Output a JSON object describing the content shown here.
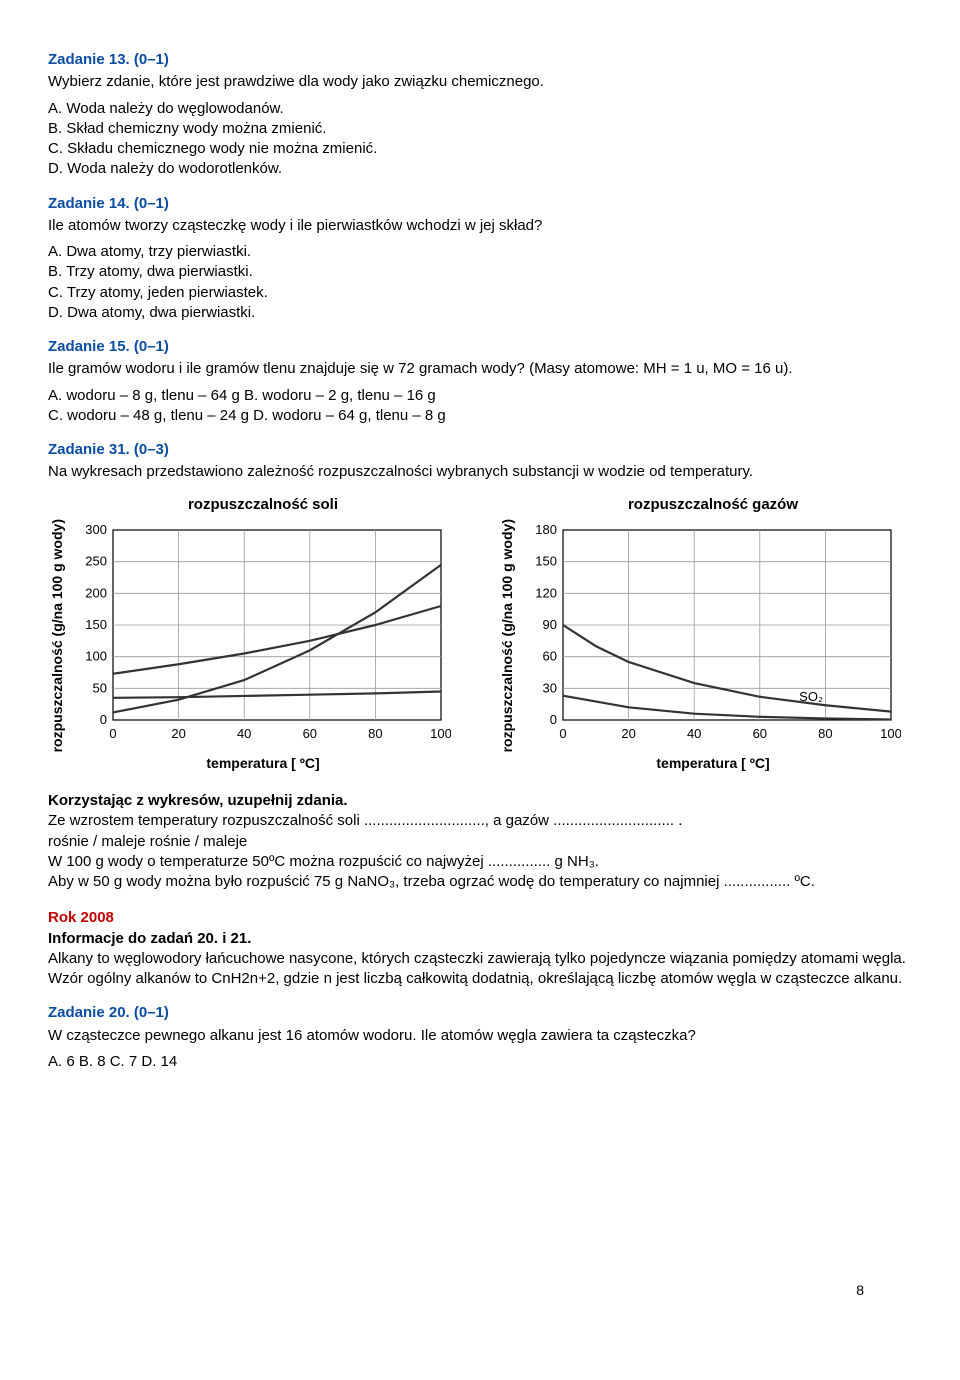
{
  "z13": {
    "title": "Zadanie 13. (0–1)",
    "q": "Wybierz zdanie, które jest prawdziwe dla wody jako związku chemicznego.",
    "a": "A. Woda należy do węglowodanów.",
    "b": "B. Skład chemiczny wody można zmienić.",
    "c": "C. Składu chemicznego wody nie można zmienić.",
    "d": "D. Woda należy do wodorotlenków."
  },
  "z14": {
    "title": "Zadanie 14. (0–1)",
    "q": "Ile atomów tworzy cząsteczkę wody i ile pierwiastków wchodzi w jej skład?",
    "a": "A. Dwa atomy, trzy pierwiastki.",
    "b": "B. Trzy atomy, dwa pierwiastki.",
    "c": "C. Trzy atomy, jeden pierwiastek.",
    "d": "D. Dwa atomy, dwa pierwiastki."
  },
  "z15": {
    "title": "Zadanie 15. (0–1)",
    "q": "Ile gramów wodoru i ile gramów tlenu znajduje się w 72 gramach wody? (Masy atomowe: MH = 1 u, MO = 16 u).",
    "ab": "A. wodoru – 8 g, tlenu – 64 g B. wodoru – 2 g, tlenu – 16 g",
    "cd": "C. wodoru – 48 g, tlenu – 24 g D. wodoru – 64 g, tlenu – 8 g"
  },
  "z31": {
    "title": "Zadanie 31. (0–3)",
    "q": "Na wykresach przedstawiono zależność rozpuszczalności wybranych substancji w wodzie od temperatury."
  },
  "fillin": {
    "lead": "Korzystając z wykresów, uzupełnij zdania.",
    "l1": "Ze wzrostem temperatury rozpuszczalność soli ............................., a gazów ............................. .",
    "l2": "rośnie / maleje rośnie / maleje",
    "l3": "W 100 g wody o temperaturze 50ºC można rozpuścić co najwyżej ............... g NH₃.",
    "l4": "Aby w 50 g wody można było rozpuścić 75 g NaNO₃, trzeba ogrzać wodę do temperatury co najmniej ................ ºC."
  },
  "rok": {
    "label": "Rok 2008"
  },
  "info": {
    "heading": "Informacje do zadań 20. i 21.",
    "body": "Alkany to węglowodory łańcuchowe nasycone, których cząsteczki zawierają tylko pojedyncze wiązania pomiędzy atomami węgla. Wzór ogólny alkanów to CnH2n+2, gdzie n jest liczbą całkowitą dodatnią, określającą liczbę atomów węgla w cząsteczce alkanu."
  },
  "z20": {
    "title": "Zadanie 20. (0–1)",
    "q": "W cząsteczce pewnego alkanu jest 16 atomów wodoru. Ile atomów węgla zawiera ta cząsteczka?",
    "opts": "A. 6 B. 8 C. 7 D. 14"
  },
  "chart1": {
    "title": "rozpuszczalność soli",
    "ylabel": "rozpuszczalność\n(g/na 100 g wody)",
    "xlabel": "temperatura [ ºC]",
    "yticks": [
      0,
      50,
      100,
      150,
      200,
      250,
      300
    ],
    "xticks": [
      0,
      20,
      40,
      60,
      80,
      100
    ],
    "ylim": [
      0,
      300
    ],
    "xlim": [
      0,
      100
    ],
    "grid_color": "#9a9a9a",
    "axis_color": "#000",
    "line_color": "#333",
    "line_width": 2.2,
    "bg": "#ffffff",
    "series": [
      {
        "points": [
          [
            0,
            12
          ],
          [
            20,
            32
          ],
          [
            40,
            63
          ],
          [
            60,
            110
          ],
          [
            80,
            170
          ],
          [
            100,
            245
          ]
        ]
      },
      {
        "points": [
          [
            0,
            73
          ],
          [
            20,
            88
          ],
          [
            40,
            105
          ],
          [
            60,
            125
          ],
          [
            80,
            150
          ],
          [
            100,
            180
          ]
        ]
      },
      {
        "points": [
          [
            0,
            35
          ],
          [
            20,
            36
          ],
          [
            40,
            38
          ],
          [
            60,
            40
          ],
          [
            80,
            42
          ],
          [
            100,
            45
          ]
        ]
      }
    ],
    "label_fontsize": 13,
    "tick_fontsize": 13
  },
  "chart2": {
    "title": "rozpuszczalność gazów",
    "ylabel": "rozpuszczalność\n(g/na 100 g wody)",
    "xlabel": "temperatura [ ºC]",
    "yticks": [
      0,
      30,
      60,
      90,
      120,
      150,
      180
    ],
    "xticks": [
      0,
      20,
      40,
      60,
      80,
      100
    ],
    "ylim": [
      0,
      180
    ],
    "xlim": [
      0,
      100
    ],
    "grid_color": "#9a9a9a",
    "axis_color": "#000",
    "line_color": "#333",
    "line_width": 2.2,
    "bg": "#ffffff",
    "series": [
      {
        "points": [
          [
            0,
            90
          ],
          [
            10,
            70
          ],
          [
            20,
            55
          ],
          [
            40,
            35
          ],
          [
            60,
            22
          ],
          [
            80,
            14
          ],
          [
            100,
            8
          ]
        ]
      },
      {
        "points": [
          [
            0,
            23
          ],
          [
            20,
            12
          ],
          [
            40,
            6
          ],
          [
            60,
            3
          ],
          [
            80,
            1.5
          ],
          [
            100,
            0.5
          ]
        ],
        "label": "SO₂",
        "label_at": [
          72,
          18
        ]
      }
    ],
    "label_fontsize": 13,
    "tick_fontsize": 13
  },
  "page_number": "8"
}
